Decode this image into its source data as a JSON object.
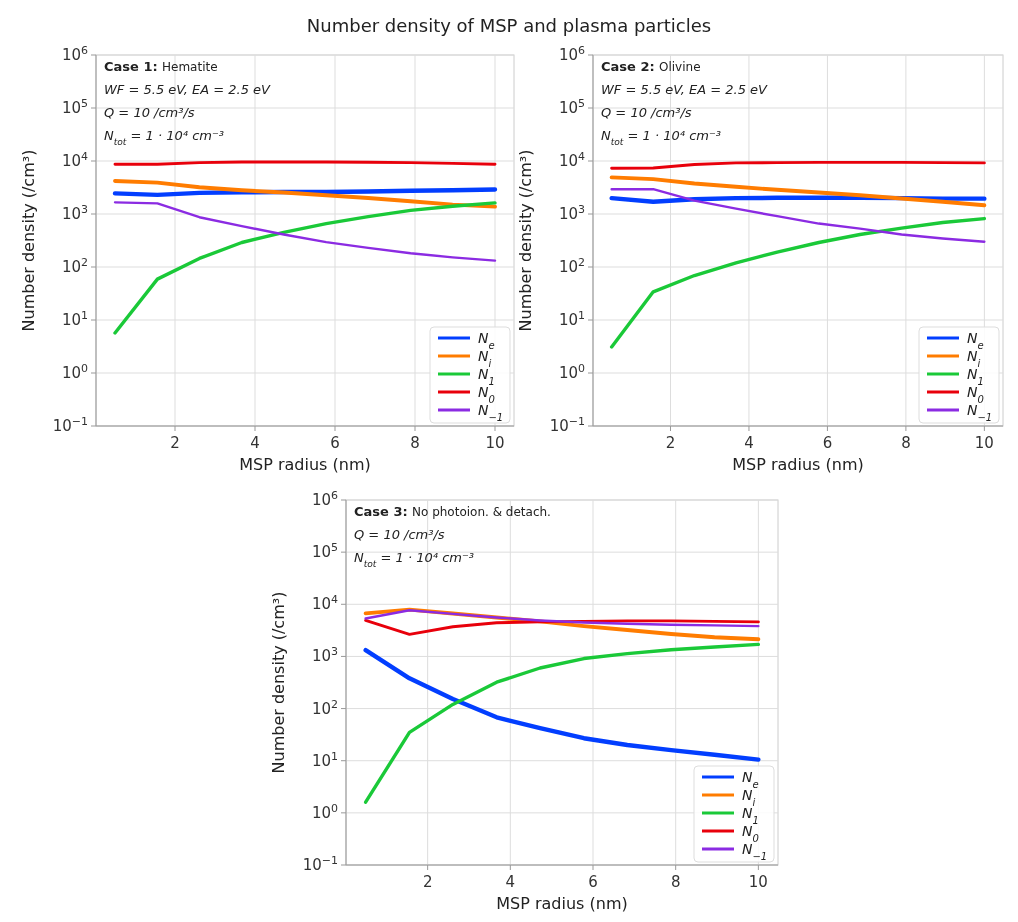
{
  "chart_data": [
    {
      "type": "line",
      "title": "Number density of MSP and plasma particles",
      "xlabel": "MSP radius (nm)",
      "ylabel": "Number density (/cm³)",
      "annotations": [
        "Case 1:",
        "Hematite",
        "WF = 5.5 eV,  EA = 2.5 eV",
        "Q = 10 /cm³/s",
        "N$_{tot}$ = 1 · 10⁴ cm⁻³"
      ],
      "x": [
        0.5,
        1.56,
        2.61,
        3.67,
        4.72,
        5.78,
        6.83,
        7.89,
        8.94,
        10
      ],
      "series": [
        {
          "name": "N$_{e}$",
          "color": "#023eff",
          "values": [
            2450,
            2300,
            2500,
            2570,
            2600,
            2600,
            2650,
            2750,
            2800,
            2900
          ]
        },
        {
          "name": "N$_{i}$",
          "color": "#ff7c00",
          "values": [
            4200,
            3900,
            3200,
            2800,
            2550,
            2260,
            2000,
            1740,
            1500,
            1380
          ]
        },
        {
          "name": "N$_{1}$",
          "color": "#1ac938",
          "values": [
            5.7,
            59,
            145,
            290,
            450,
            660,
            890,
            1170,
            1400,
            1620
          ]
        },
        {
          "name": "N$_{0}$",
          "color": "#e8000b",
          "values": [
            8700,
            8700,
            9300,
            9600,
            9600,
            9600,
            9500,
            9300,
            9000,
            8700
          ]
        },
        {
          "name": "N$_{−1}$",
          "color": "#8b2be2",
          "values": [
            1660,
            1590,
            870,
            590,
            410,
            295,
            230,
            182,
            152,
            132
          ]
        }
      ],
      "xlim": [
        0.025,
        10.475
      ],
      "xticks": [
        2,
        4,
        6,
        8,
        10
      ],
      "ylim": [
        0.1,
        1000000
      ],
      "yticks": [
        {
          "value": 0.1,
          "label": "10$^{−1}$"
        },
        {
          "value": 1,
          "label": "10$^{0}$"
        },
        {
          "value": 10,
          "label": "10$^{1}$"
        },
        {
          "value": 100,
          "label": "10$^{2}$"
        },
        {
          "value": 1000,
          "label": "10$^{3}$"
        },
        {
          "value": 10000,
          "label": "10$^{4}$"
        },
        {
          "value": 100000,
          "label": "10$^{5}$"
        },
        {
          "value": 1000000,
          "label": "10$^{6}$"
        }
      ],
      "log": "y",
      "grid": true,
      "legend": "bottom right",
      "line_style": "solid",
      "marker": "none"
    },
    {
      "type": "line",
      "xlabel": "MSP radius (nm)",
      "ylabel": "Number density (/cm³)",
      "annotations": [
        "Case 2:",
        "Olivine",
        "WF = 5.5 eV,  EA = 2.5 eV",
        "Q = 10 /cm³/s",
        "N$_{tot}$ = 1 · 10⁴ cm⁻³"
      ],
      "x": [
        0.5,
        1.56,
        2.61,
        3.67,
        4.72,
        5.78,
        6.83,
        7.89,
        8.94,
        10
      ],
      "series": [
        {
          "name": "N$_{e}$",
          "color": "#023eff",
          "values": [
            1990,
            1700,
            1900,
            1990,
            2020,
            2020,
            2020,
            1990,
            1950,
            1950
          ]
        },
        {
          "name": "N$_{i}$",
          "color": "#ff7c00",
          "values": [
            4900,
            4550,
            3770,
            3260,
            2860,
            2550,
            2260,
            1960,
            1700,
            1460
          ]
        },
        {
          "name": "N$_{1}$",
          "color": "#1ac938",
          "values": [
            3.1,
            34,
            69,
            120,
            191,
            290,
            410,
            540,
            690,
            820
          ]
        },
        {
          "name": "N$_{0}$",
          "color": "#e8000b",
          "values": [
            7300,
            7400,
            8600,
            9200,
            9300,
            9400,
            9400,
            9400,
            9300,
            9200
          ]
        },
        {
          "name": "N$_{−1}$",
          "color": "#8b2be2",
          "values": [
            2940,
            2940,
            1790,
            1260,
            910,
            660,
            530,
            410,
            345,
            300
          ]
        }
      ],
      "xlim": [
        0.025,
        10.475
      ],
      "xticks": [
        2,
        4,
        6,
        8,
        10
      ],
      "ylim": [
        0.1,
        1000000
      ],
      "yticks": [
        {
          "value": 0.1,
          "label": "10$^{−1}$"
        },
        {
          "value": 1,
          "label": "10$^{0}$"
        },
        {
          "value": 10,
          "label": "10$^{1}$"
        },
        {
          "value": 100,
          "label": "10$^{2}$"
        },
        {
          "value": 1000,
          "label": "10$^{3}$"
        },
        {
          "value": 10000,
          "label": "10$^{4}$"
        },
        {
          "value": 100000,
          "label": "10$^{5}$"
        },
        {
          "value": 1000000,
          "label": "10$^{6}$"
        }
      ],
      "log": "y",
      "grid": true,
      "legend": "bottom right",
      "line_style": "solid",
      "marker": "none"
    },
    {
      "type": "line",
      "xlabel": "MSP radius (nm)",
      "ylabel": "Number density (/cm³)",
      "annotations": [
        "Case 3:",
        "No photoion. & detach.",
        "Q = 10 /cm³/s",
        "N$_{tot}$ = 1 · 10⁴ cm⁻³"
      ],
      "x": [
        0.5,
        1.56,
        2.61,
        3.67,
        4.72,
        5.78,
        6.83,
        7.89,
        8.94,
        10
      ],
      "series": [
        {
          "name": "N$_{e}$",
          "color": "#023eff",
          "values": [
            1320,
            380,
            152,
            68,
            42,
            27,
            20,
            16,
            13,
            10.5
          ]
        },
        {
          "name": "N$_{i}$",
          "color": "#ff7c00",
          "values": [
            6700,
            7900,
            6650,
            5580,
            4690,
            3820,
            3210,
            2700,
            2330,
            2140
          ]
        },
        {
          "name": "N$_{1}$",
          "color": "#1ac938",
          "values": [
            1.6,
            35,
            120,
            320,
            600,
            910,
            1130,
            1340,
            1520,
            1700
          ]
        },
        {
          "name": "N$_{0}$",
          "color": "#e8000b",
          "values": [
            4900,
            2650,
            3700,
            4430,
            4600,
            4700,
            4800,
            4800,
            4700,
            4600
          ]
        },
        {
          "name": "N$_{−1}$",
          "color": "#8b2be2",
          "values": [
            5350,
            7700,
            6550,
            5580,
            4900,
            4480,
            4240,
            4060,
            3940,
            3820
          ]
        }
      ],
      "xlim": [
        0.025,
        10.475
      ],
      "xticks": [
        2,
        4,
        6,
        8,
        10
      ],
      "ylim": [
        0.1,
        1000000
      ],
      "yticks": [
        {
          "value": 0.1,
          "label": "10$^{−1}$"
        },
        {
          "value": 1,
          "label": "10$^{0}$"
        },
        {
          "value": 10,
          "label": "10$^{1}$"
        },
        {
          "value": 100,
          "label": "10$^{2}$"
        },
        {
          "value": 1000,
          "label": "10$^{3}$"
        },
        {
          "value": 10000,
          "label": "10$^{4}$"
        },
        {
          "value": 100000,
          "label": "10$^{5}$"
        },
        {
          "value": 1000000,
          "label": "10$^{6}$"
        }
      ],
      "log": "y",
      "grid": true,
      "legend": "bottom right",
      "line_style": "solid",
      "marker": "none"
    }
  ]
}
